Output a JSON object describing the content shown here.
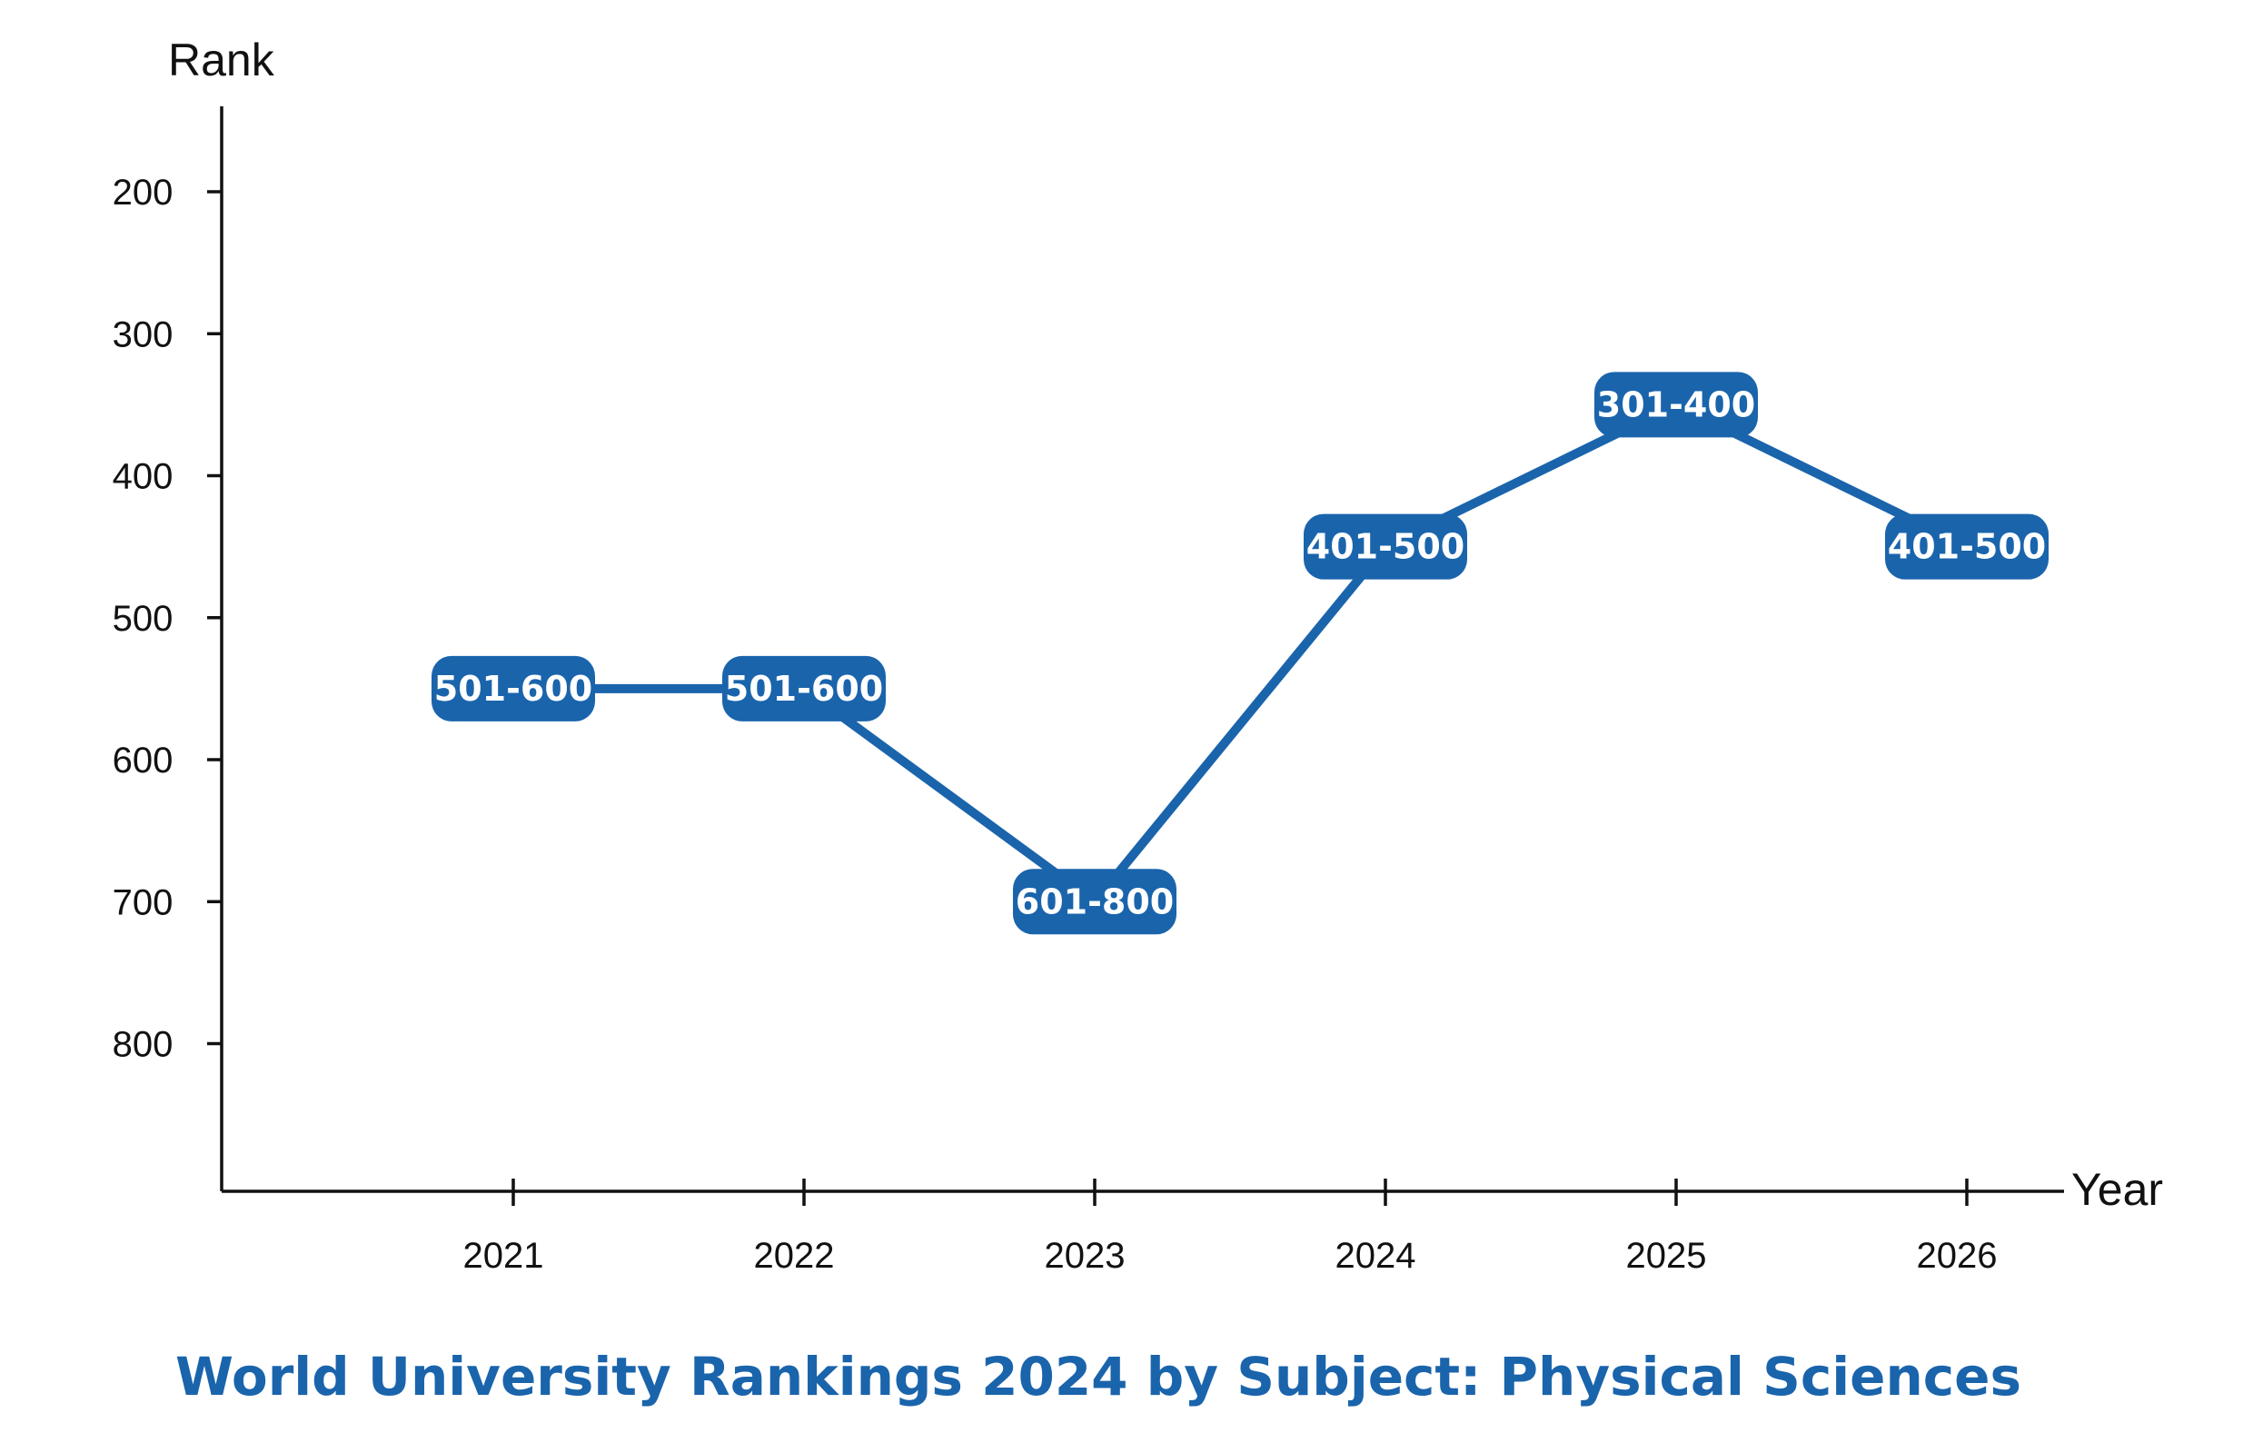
{
  "chart_data": {
    "type": "line",
    "title": "World University Rankings 2024 by Subject: Physical Sciences",
    "xlabel": "Year",
    "ylabel": "Rank",
    "x": [
      2021,
      2022,
      2023,
      2024,
      2025,
      2026
    ],
    "x_tick_labels": [
      "2021",
      "2022",
      "2023",
      "2024",
      "2025",
      "2026"
    ],
    "y_ticks": [
      200,
      300,
      400,
      500,
      600,
      700,
      800
    ],
    "y_tick_labels": [
      "200",
      "300",
      "400",
      "500",
      "600",
      "700",
      "800"
    ],
    "ylim": [
      140,
      900
    ],
    "y_inverted": true,
    "grid": false,
    "series": [
      {
        "values": [
          550,
          550,
          700,
          450,
          350,
          450
        ],
        "labels": [
          "501-600",
          "501-600",
          "601-800",
          "401-500",
          "301-400",
          "401-500"
        ]
      }
    ],
    "colors": {
      "line": "#1a64ac",
      "label_bg": "#1a64ac",
      "label_text": "#ffffff",
      "title": "#1a64ac",
      "axis": "#111111"
    }
  }
}
